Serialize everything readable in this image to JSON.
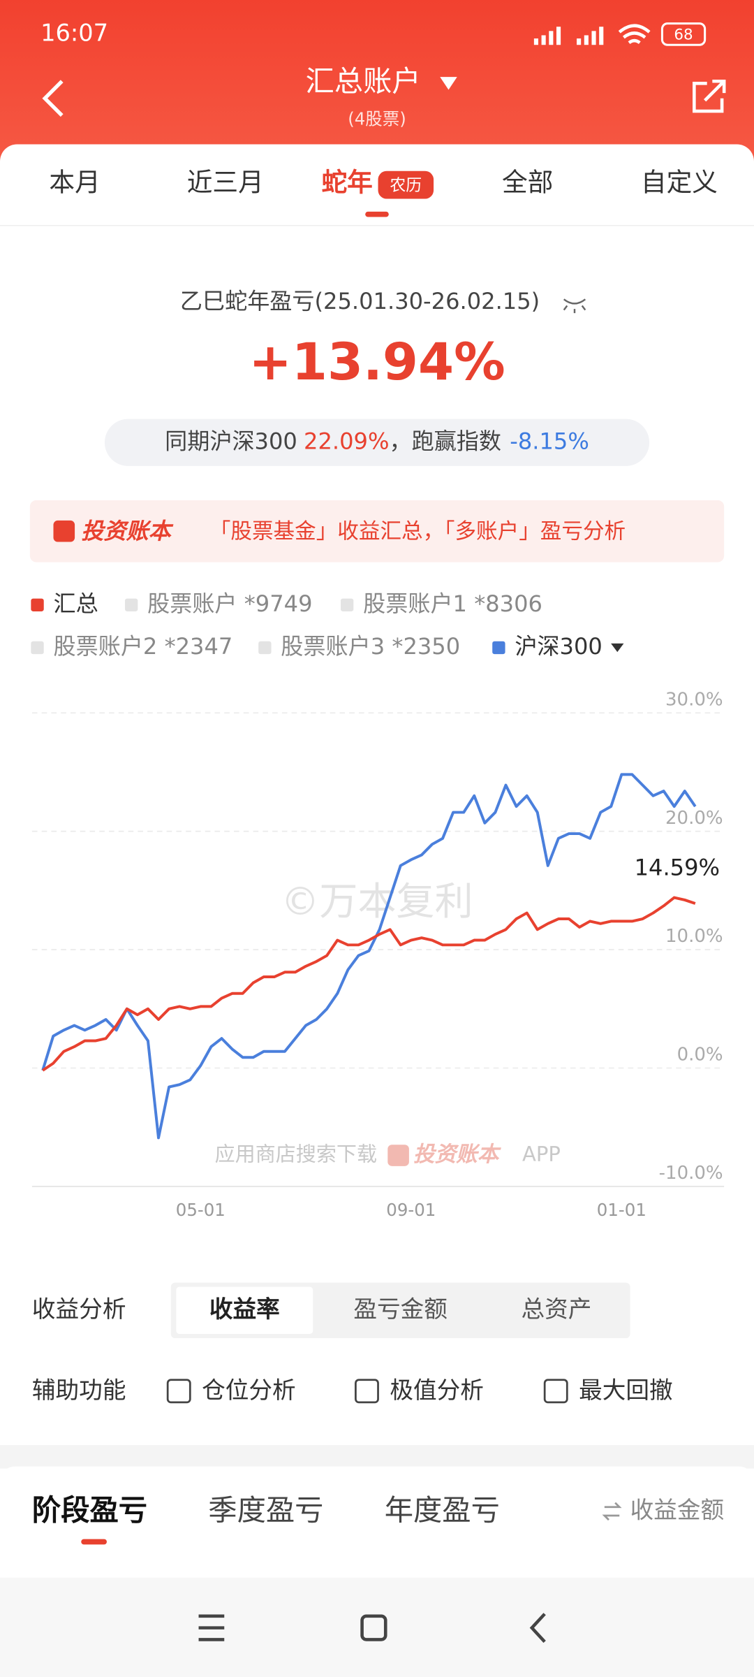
{
  "status_bar": {
    "time": "16:07",
    "battery": "68"
  },
  "header": {
    "title": "汇总账户",
    "subtitle": "(4股票)"
  },
  "tabs": [
    "本月",
    "近三月",
    "蛇年",
    "全部",
    "自定义"
  ],
  "tab_badge": "农历",
  "summary": {
    "title": "乙巳蛇年盈亏(25.01.30-26.02.15)",
    "return": "+13.94%",
    "benchmark_label": "同期沪深300",
    "benchmark_value": "22.09%",
    "excess_label": "，跑赢指数",
    "excess_value": "-8.15%"
  },
  "banner": {
    "brand": "投资账本",
    "text": "「股票基金」收益汇总，「多账户」盈亏分析"
  },
  "chart_data": {
    "type": "line",
    "categories": [
      null,
      null,
      null,
      null,
      null,
      null,
      null,
      null,
      null,
      null,
      null,
      null,
      null,
      null,
      null,
      "05-01",
      null,
      null,
      null,
      null,
      null,
      null,
      null,
      null,
      null,
      null,
      null,
      null,
      null,
      null,
      null,
      null,
      null,
      null,
      null,
      "09-01",
      null,
      null,
      null,
      null,
      null,
      null,
      null,
      null,
      null,
      null,
      null,
      null,
      null,
      null,
      null,
      null,
      null,
      null,
      null,
      "01-01",
      null,
      null,
      null,
      null,
      null,
      null,
      null
    ],
    "series": [
      {
        "name": "汇总",
        "color": "#e8412f",
        "values": [
          -0.2,
          0.4,
          1.4,
          1.8,
          2.3,
          2.3,
          2.5,
          3.6,
          5.0,
          4.5,
          5.0,
          4.1,
          5.0,
          5.2,
          5.0,
          5.2,
          5.2,
          5.9,
          6.3,
          6.3,
          7.2,
          7.7,
          7.7,
          8.1,
          8.1,
          8.6,
          9.0,
          9.5,
          10.8,
          10.4,
          10.4,
          10.8,
          11.3,
          11.7,
          10.4,
          10.8,
          11.0,
          10.8,
          10.4,
          10.4,
          10.4,
          10.8,
          10.8,
          11.3,
          11.7,
          12.6,
          13.1,
          11.7,
          12.2,
          12.6,
          12.6,
          11.9,
          12.4,
          12.2,
          12.4,
          12.4,
          12.4,
          12.6,
          13.1,
          13.7,
          14.4,
          14.2,
          13.9
        ]
      },
      {
        "name": "沪深300",
        "color": "#4a7fdc",
        "values": [
          -0.2,
          2.7,
          3.2,
          3.6,
          3.2,
          3.6,
          4.1,
          3.2,
          5.0,
          3.6,
          2.3,
          -5.9,
          -1.6,
          -1.4,
          -1.0,
          0.2,
          1.8,
          2.5,
          1.6,
          0.9,
          0.9,
          1.4,
          1.4,
          1.4,
          2.5,
          3.6,
          4.1,
          5.0,
          6.3,
          8.3,
          9.5,
          9.9,
          11.7,
          14.4,
          17.1,
          17.6,
          18.0,
          18.9,
          19.4,
          21.6,
          21.6,
          23.0,
          20.7,
          21.6,
          23.9,
          22.1,
          23.0,
          21.6,
          17.1,
          19.4,
          19.8,
          19.8,
          19.4,
          21.6,
          22.1,
          24.8,
          24.8,
          23.9,
          23.0,
          23.4,
          22.1,
          23.4,
          22.1
        ]
      }
    ],
    "inactive_legend": [
      "股票账户 *9749",
      "股票账户1 *8306",
      "股票账户2 *2347",
      "股票账户3 *2350"
    ],
    "inactive_color": "#e3e3e3",
    "ylim": [
      -10,
      30
    ],
    "yticks": [
      {
        "value": -10,
        "label": "-10.0%"
      },
      {
        "value": 0,
        "label": "0.0%"
      },
      {
        "value": 10,
        "label": "10.0%"
      },
      {
        "value": 20,
        "label": "20.0%"
      },
      {
        "value": 30,
        "label": "30.0%"
      }
    ],
    "grid": true,
    "annotation": "14.59%",
    "watermark": "©万本复利",
    "footer_note": "应用商店搜索下载",
    "footer_brand": "投资账本",
    "footer_app": "APP"
  },
  "analysis": {
    "label": "收益分析",
    "options": [
      "收益率",
      "盈亏金额",
      "总资产"
    ]
  },
  "aux": {
    "label": "辅助功能",
    "options": [
      "仓位分析",
      "极值分析",
      "最大回撤"
    ]
  },
  "section_tabs": [
    "阶段盈亏",
    "季度盈亏",
    "年度盈亏"
  ],
  "toggle": "收益金额"
}
